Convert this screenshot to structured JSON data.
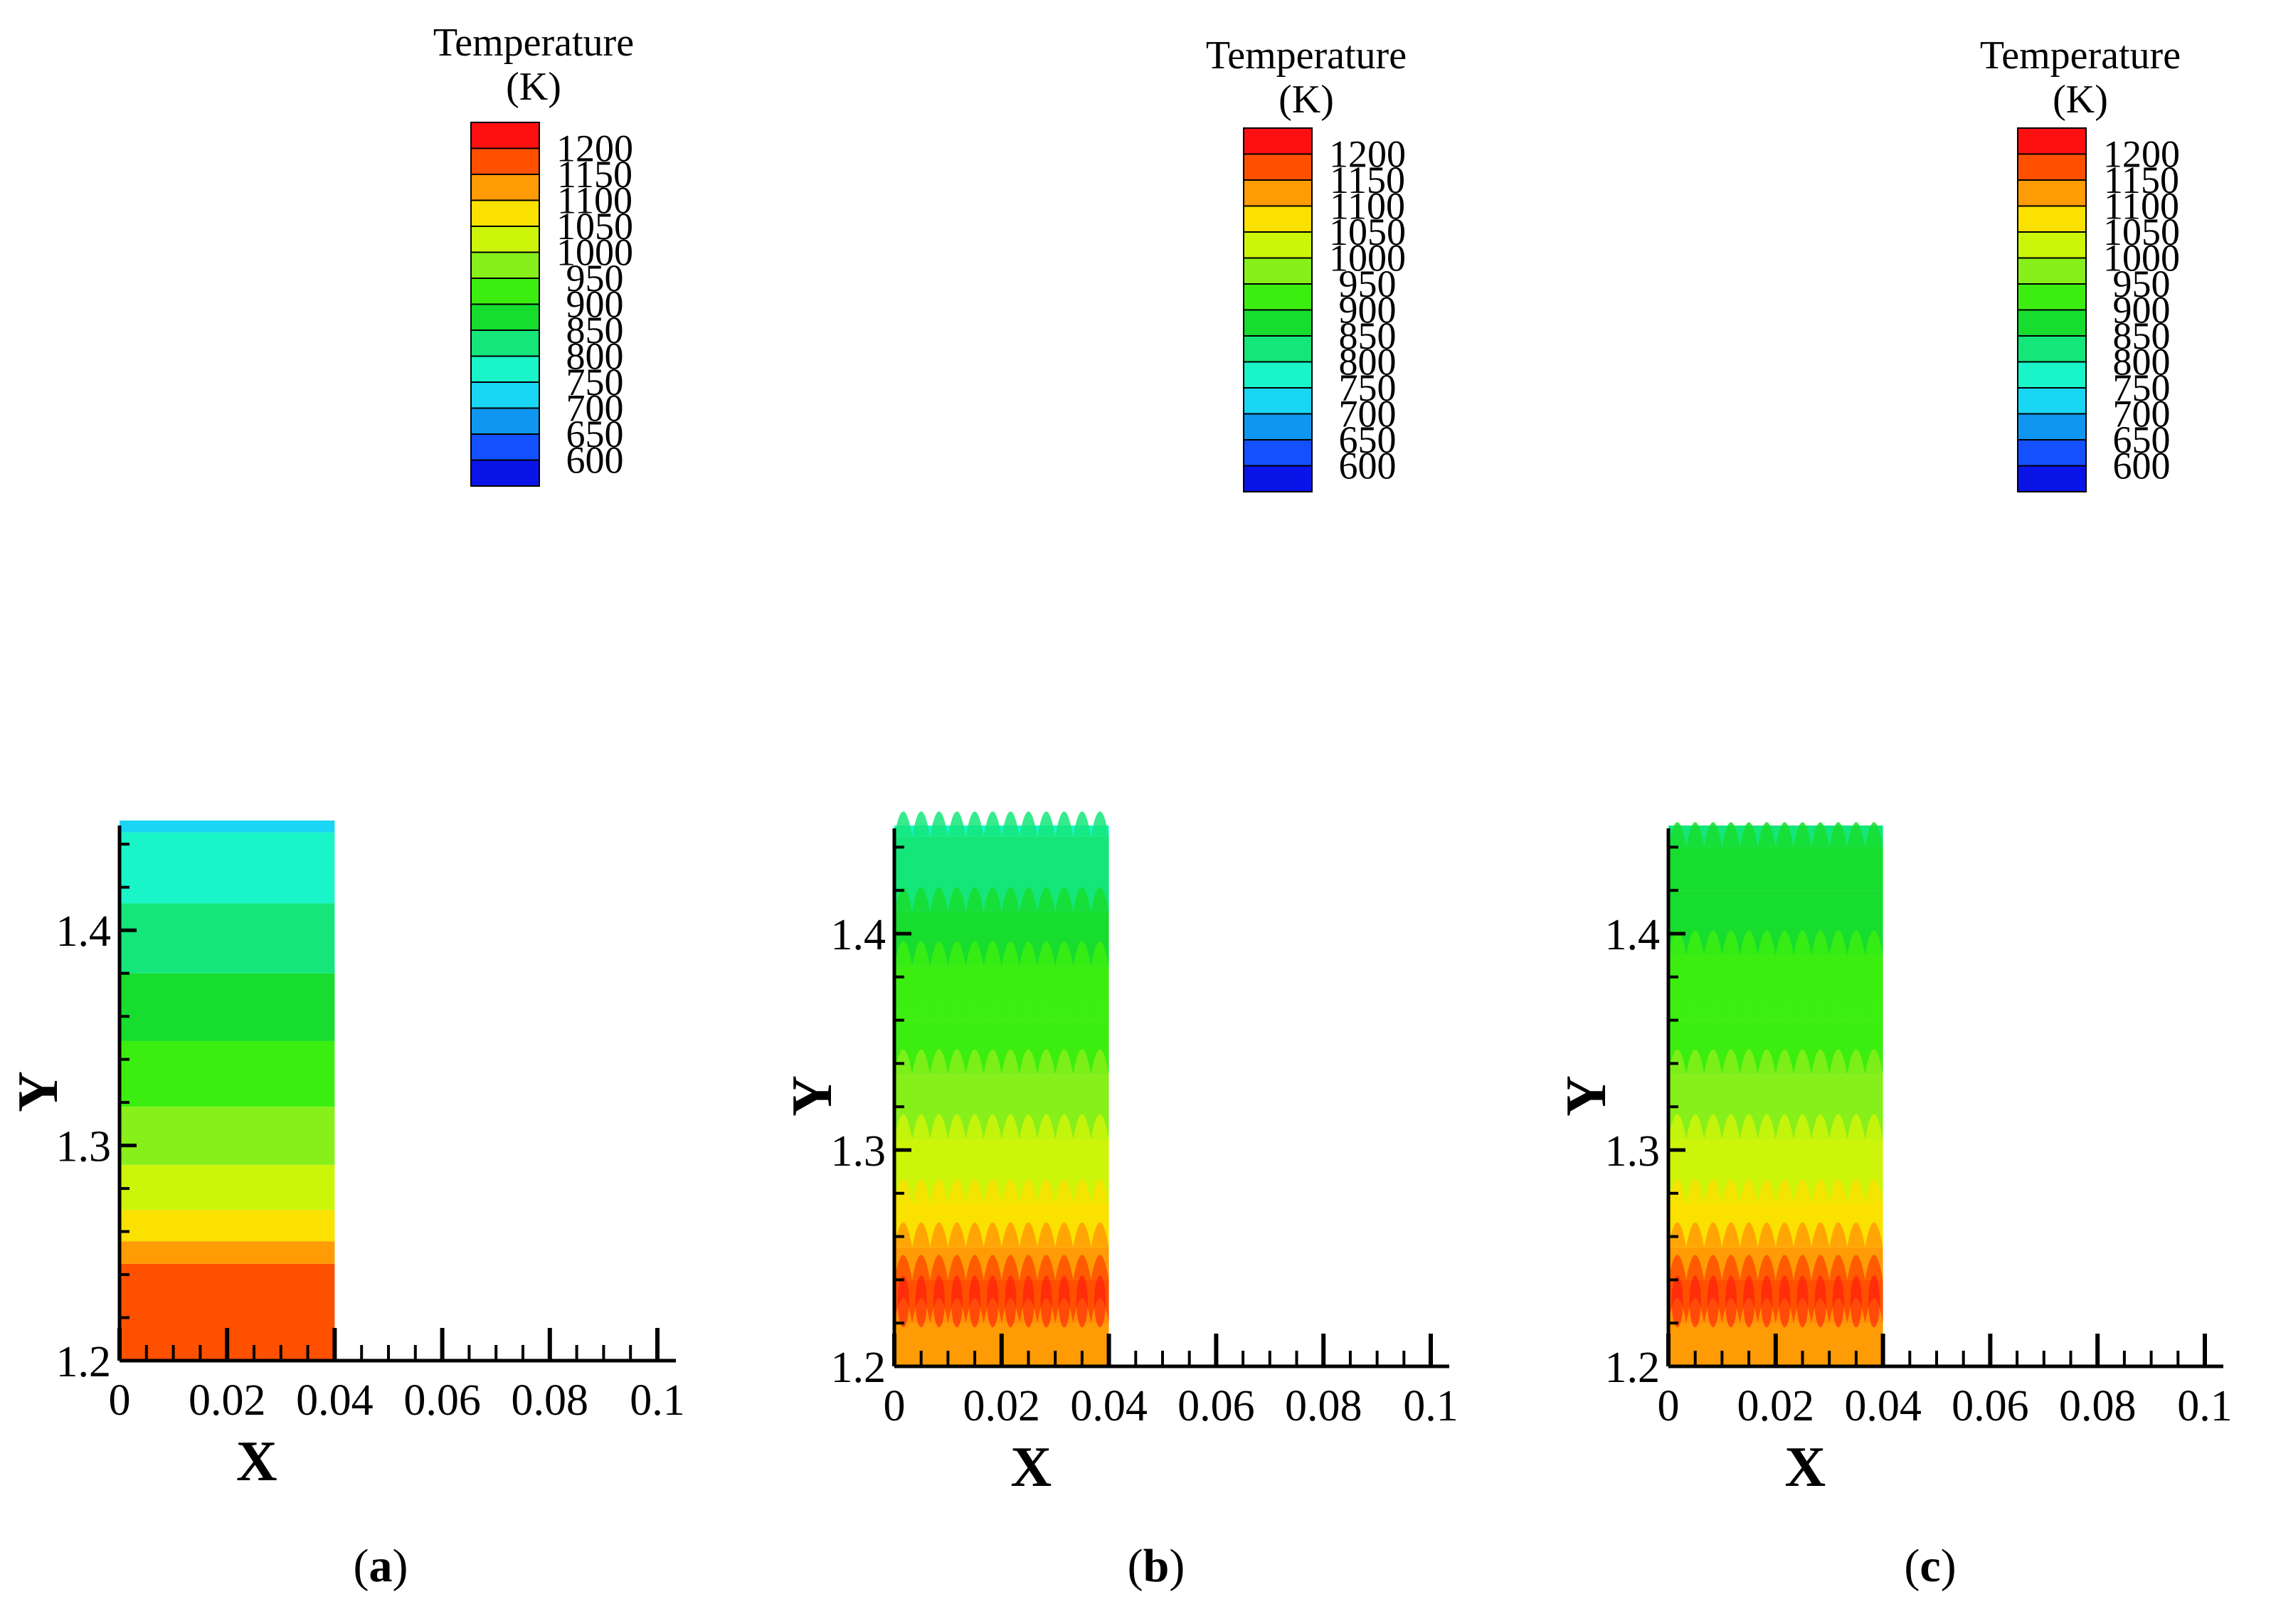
{
  "chart_data": [
    {
      "type": "heatmap",
      "panel": "a",
      "caption_letter": "a",
      "xlabel": "X",
      "ylabel": "Y",
      "xlim": [
        0,
        0.1
      ],
      "ylim": [
        1.2,
        1.45
      ],
      "x_ticks": [
        "0",
        "0.02",
        "0.04",
        "0.06",
        "0.08",
        "0.1"
      ],
      "y_ticks": [
        "1.2",
        "1.3",
        "1.4"
      ],
      "domain_x": [
        0,
        0.04
      ],
      "bands": [
        {
          "y0": 1.2,
          "y1": 1.245,
          "temperature": 1175
        },
        {
          "y0": 1.245,
          "y1": 1.2555,
          "temperature": 1125
        },
        {
          "y0": 1.2555,
          "y1": 1.27,
          "temperature": 1075
        },
        {
          "y0": 1.27,
          "y1": 1.291,
          "temperature": 1025
        },
        {
          "y0": 1.291,
          "y1": 1.318,
          "temperature": 975
        },
        {
          "y0": 1.318,
          "y1": 1.3485,
          "temperature": 925
        },
        {
          "y0": 1.3485,
          "y1": 1.38,
          "temperature": 875
        },
        {
          "y0": 1.38,
          "y1": 1.4125,
          "temperature": 825
        },
        {
          "y0": 1.4125,
          "y1": 1.4455,
          "temperature": 775
        },
        {
          "y0": 1.4455,
          "y1": 1.451,
          "temperature": 725
        }
      ],
      "wavy_transitions": false,
      "legend": {
        "title_line1": "Temperature",
        "title_line2": "(K)",
        "levels": [
          "1200",
          "1150",
          "1100",
          "1050",
          "1000",
          "950",
          "900",
          "850",
          "800",
          "750",
          "700",
          "650",
          "600"
        ]
      }
    },
    {
      "type": "heatmap",
      "panel": "b",
      "caption_letter": "b",
      "xlabel": "X",
      "ylabel": "Y",
      "xlim": [
        0,
        0.1
      ],
      "ylim": [
        1.2,
        1.45
      ],
      "x_ticks": [
        "0",
        "0.02",
        "0.04",
        "0.06",
        "0.08",
        "0.1"
      ],
      "y_ticks": [
        "1.2",
        "1.3",
        "1.4"
      ],
      "domain_x": [
        0,
        0.04
      ],
      "bands": [
        {
          "y0": 1.2,
          "y1": 1.22,
          "temperature": 1125
        },
        {
          "y0": 1.22,
          "y1": 1.24,
          "temperature": 1175
        },
        {
          "y0": 1.24,
          "y1": 1.255,
          "temperature": 1125
        },
        {
          "y0": 1.255,
          "y1": 1.275,
          "temperature": 1075
        },
        {
          "y0": 1.275,
          "y1": 1.305,
          "temperature": 1025
        },
        {
          "y0": 1.305,
          "y1": 1.335,
          "temperature": 975
        },
        {
          "y0": 1.335,
          "y1": 1.36,
          "temperature": 950
        },
        {
          "y0": 1.36,
          "y1": 1.385,
          "temperature": 925
        },
        {
          "y0": 1.385,
          "y1": 1.41,
          "temperature": 875
        },
        {
          "y0": 1.41,
          "y1": 1.445,
          "temperature": 825
        },
        {
          "y0": 1.445,
          "y1": 1.45,
          "temperature": 775
        }
      ],
      "wavy_transitions": true,
      "legend": {
        "title_line1": "Temperature",
        "title_line2": "(K)",
        "levels": [
          "1200",
          "1150",
          "1100",
          "1050",
          "1000",
          "950",
          "900",
          "850",
          "800",
          "750",
          "700",
          "650",
          "600"
        ]
      }
    },
    {
      "type": "heatmap",
      "panel": "c",
      "caption_letter": "c",
      "xlabel": "X",
      "ylabel": "Y",
      "xlim": [
        0,
        0.1
      ],
      "ylim": [
        1.2,
        1.45
      ],
      "x_ticks": [
        "0",
        "0.02",
        "0.04",
        "0.06",
        "0.08",
        "0.1"
      ],
      "y_ticks": [
        "1.2",
        "1.3",
        "1.4"
      ],
      "domain_x": [
        0,
        0.04
      ],
      "bands": [
        {
          "y0": 1.2,
          "y1": 1.22,
          "temperature": 1125
        },
        {
          "y0": 1.22,
          "y1": 1.24,
          "temperature": 1175
        },
        {
          "y0": 1.24,
          "y1": 1.255,
          "temperature": 1125
        },
        {
          "y0": 1.255,
          "y1": 1.275,
          "temperature": 1075
        },
        {
          "y0": 1.275,
          "y1": 1.305,
          "temperature": 1025
        },
        {
          "y0": 1.305,
          "y1": 1.335,
          "temperature": 975
        },
        {
          "y0": 1.335,
          "y1": 1.36,
          "temperature": 950
        },
        {
          "y0": 1.36,
          "y1": 1.39,
          "temperature": 925
        },
        {
          "y0": 1.39,
          "y1": 1.42,
          "temperature": 900
        },
        {
          "y0": 1.42,
          "y1": 1.44,
          "temperature": 875
        },
        {
          "y0": 1.44,
          "y1": 1.45,
          "temperature": 825
        }
      ],
      "wavy_transitions": true,
      "legend": {
        "title_line1": "Temperature",
        "title_line2": "(K)",
        "levels": [
          "1200",
          "1150",
          "1100",
          "1050",
          "1000",
          "950",
          "900",
          "850",
          "800",
          "750",
          "700",
          "650",
          "600"
        ]
      }
    }
  ],
  "colormap": {
    "600": "#0a14e6",
    "650": "#1450ff",
    "700": "#0f96f0",
    "750": "#19d6f5",
    "800": "#19f5c8",
    "850": "#14e67a",
    "900": "#16dd2e",
    "950": "#3cee10",
    "1000": "#87ef1a",
    "1050": "#ccf50a",
    "1100": "#fae100",
    "1150": "#ff9b05",
    "1200": "#ff5000",
    "1250": "#ff1010"
  },
  "legend_swatches": [
    "#ff1010",
    "#ff5000",
    "#ff9b05",
    "#fae100",
    "#ccf50a",
    "#87ef1a",
    "#3cee10",
    "#16dd2e",
    "#14e67a",
    "#19f5c8",
    "#19d6f5",
    "#0f96f0",
    "#1450ff",
    "#0a14e6"
  ]
}
